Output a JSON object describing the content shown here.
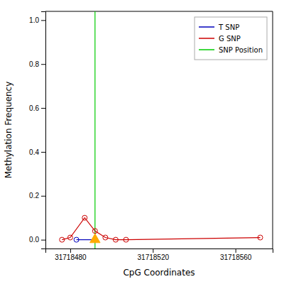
{
  "chart_data": {
    "type": "line",
    "xlabel": "CpG Coordinates",
    "ylabel": "Methylation Frequency",
    "xlim": [
      31718468,
      31718578
    ],
    "ylim": [
      -0.04,
      1.04
    ],
    "xticks": [
      31718480,
      31718520,
      31718560
    ],
    "yticks": [
      {
        "value": 0.0,
        "label": "0.0"
      },
      0.2,
      0.4,
      0.6,
      0.8,
      {
        "value": 1.0,
        "label": "1.0"
      }
    ],
    "grid": false,
    "legend": "top-right",
    "series": [
      {
        "name": "T SNP",
        "type": "line",
        "marker": "circle",
        "color": "#0000bb",
        "x": [
          31718483,
          31718492
        ],
        "values": [
          0.0,
          0.0
        ]
      },
      {
        "name": "G SNP",
        "type": "line",
        "marker": "circle",
        "color": "#cc0000",
        "x": [
          31718476,
          31718480,
          31718487,
          31718492,
          31718497,
          31718502,
          31718507,
          31718572
        ],
        "values": [
          0.0,
          0.01,
          0.1,
          0.04,
          0.01,
          0.0,
          0.0,
          0.01
        ]
      },
      {
        "name": "SNP Position",
        "type": "vline",
        "color": "#00cc00",
        "x": [
          31718492
        ]
      },
      {
        "type": "scatter",
        "marker": "triangle",
        "color": "#ffaa00",
        "x": [
          31718492
        ],
        "values": [
          0.0
        ]
      }
    ]
  }
}
